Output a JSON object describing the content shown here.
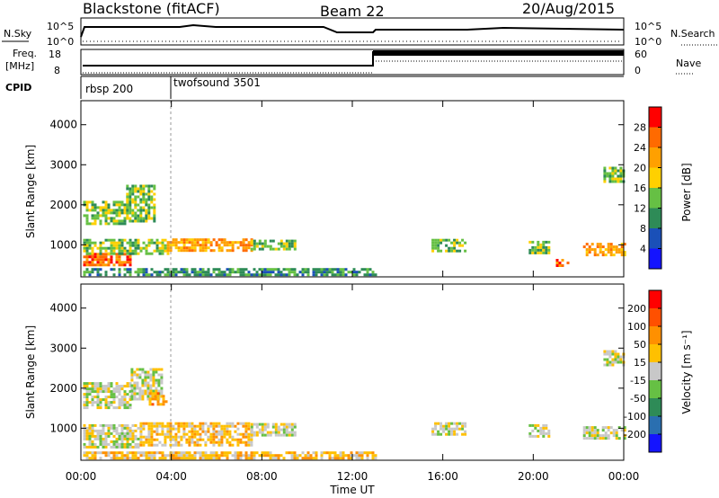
{
  "header": {
    "station": "Blackstone (fitACF)",
    "beam": "Beam 22",
    "date": "20/Aug/2015"
  },
  "panels": {
    "nsky": {
      "label": "N.Sky",
      "left_ticks": [
        "10^5",
        "10^0"
      ],
      "right_label": "N.Search",
      "right_ticks": [
        "10^5",
        "10^0"
      ]
    },
    "freq": {
      "label_line1": "Freq.",
      "label_line2": "[MHz]",
      "left_ticks": [
        "18",
        "8"
      ],
      "right_label": "Nave",
      "right_ticks": [
        "60",
        "0"
      ]
    },
    "cpid": {
      "label": "CPID",
      "entries": [
        "rbsp 200",
        "twofsound 3501"
      ]
    }
  },
  "chart_data": [
    {
      "type": "heatmap",
      "name": "power",
      "ylabel": "Slant Range [km]",
      "ylim": [
        200,
        4600
      ],
      "yticks": [
        1000,
        2000,
        3000,
        4000
      ],
      "xlim": [
        0,
        24
      ],
      "xticks": [
        "00:00",
        "04:00",
        "08:00",
        "12:00",
        "16:00",
        "20:00",
        "00:00"
      ],
      "colorbar": {
        "label": "Power [dB]",
        "ticks": [
          "4",
          "8",
          "12",
          "16",
          "20",
          "24",
          "28"
        ],
        "colors": [
          "#1414ff",
          "#1a50b8",
          "#2e8b57",
          "#66c044",
          "#ffd000",
          "#ffa000",
          "#ff6a00",
          "#ff0000"
        ]
      },
      "regions": [
        {
          "t0": 0.1,
          "t1": 2.2,
          "r0": 480,
          "r1": 800,
          "level": 6
        },
        {
          "t0": 0.1,
          "t1": 3.8,
          "r0": 780,
          "r1": 1150,
          "level": 3
        },
        {
          "t0": 3.8,
          "t1": 7.5,
          "r0": 880,
          "r1": 1160,
          "level": 5
        },
        {
          "t0": 7.5,
          "t1": 9.5,
          "r0": 900,
          "r1": 1130,
          "level": 3
        },
        {
          "t0": 0.1,
          "t1": 2.0,
          "r0": 1500,
          "r1": 2100,
          "level": 3
        },
        {
          "t0": 2.0,
          "t1": 3.3,
          "r0": 1600,
          "r1": 2500,
          "level": 3
        },
        {
          "t0": 0.1,
          "t1": 13.0,
          "r0": 230,
          "r1": 420,
          "level": 2
        },
        {
          "t0": 15.5,
          "t1": 17.0,
          "r0": 880,
          "r1": 1150,
          "level": 3
        },
        {
          "t0": 19.8,
          "t1": 20.7,
          "r0": 800,
          "r1": 1100,
          "level": 3
        },
        {
          "t0": 21.0,
          "t1": 21.5,
          "r0": 500,
          "r1": 650,
          "level": 6
        },
        {
          "t0": 22.2,
          "t1": 24.0,
          "r0": 720,
          "r1": 1050,
          "level": 5
        },
        {
          "t0": 23.1,
          "t1": 24.0,
          "r0": 2600,
          "r1": 2950,
          "level": 3
        }
      ]
    },
    {
      "type": "heatmap",
      "name": "velocity",
      "ylabel": "Slant Range [km]",
      "ylim": [
        200,
        4600
      ],
      "yticks": [
        1000,
        2000,
        3000,
        4000
      ],
      "xlim": [
        0,
        24
      ],
      "xticks": [
        "00:00",
        "04:00",
        "08:00",
        "12:00",
        "16:00",
        "20:00",
        "00:00"
      ],
      "xlabel": "Time UT",
      "colorbar": {
        "label": "Velocity [m s⁻¹]",
        "ticks": [
          "200",
          "100",
          "50",
          "15",
          "-15",
          "-50",
          "-100",
          "-200"
        ],
        "colors": [
          "#1414ff",
          "#2a6fb0",
          "#2e8b57",
          "#66c044",
          "#c8c8c8",
          "#ffc000",
          "#ff9000",
          "#ff5000",
          "#ff0000"
        ]
      },
      "regions": [
        {
          "t0": 0.1,
          "t1": 2.6,
          "r0": 500,
          "r1": 1100,
          "level": 4
        },
        {
          "t0": 2.6,
          "t1": 7.5,
          "r0": 600,
          "r1": 1150,
          "level": 5
        },
        {
          "t0": 7.5,
          "t1": 9.5,
          "r0": 850,
          "r1": 1130,
          "level": 4
        },
        {
          "t0": 0.1,
          "t1": 2.2,
          "r0": 1500,
          "r1": 2150,
          "level": 4
        },
        {
          "t0": 2.2,
          "t1": 3.6,
          "r0": 1700,
          "r1": 2500,
          "level": 4
        },
        {
          "t0": 3.0,
          "t1": 3.8,
          "r0": 1600,
          "r1": 1900,
          "level": 6
        },
        {
          "t0": 0.1,
          "t1": 13.0,
          "r0": 230,
          "r1": 420,
          "level": 5
        },
        {
          "t0": 15.5,
          "t1": 17.0,
          "r0": 880,
          "r1": 1150,
          "level": 4
        },
        {
          "t0": 19.8,
          "t1": 20.7,
          "r0": 800,
          "r1": 1100,
          "level": 4
        },
        {
          "t0": 22.2,
          "t1": 24.0,
          "r0": 720,
          "r1": 1050,
          "level": 4
        },
        {
          "t0": 23.1,
          "t1": 24.0,
          "r0": 2600,
          "r1": 2950,
          "level": 4
        }
      ]
    }
  ]
}
